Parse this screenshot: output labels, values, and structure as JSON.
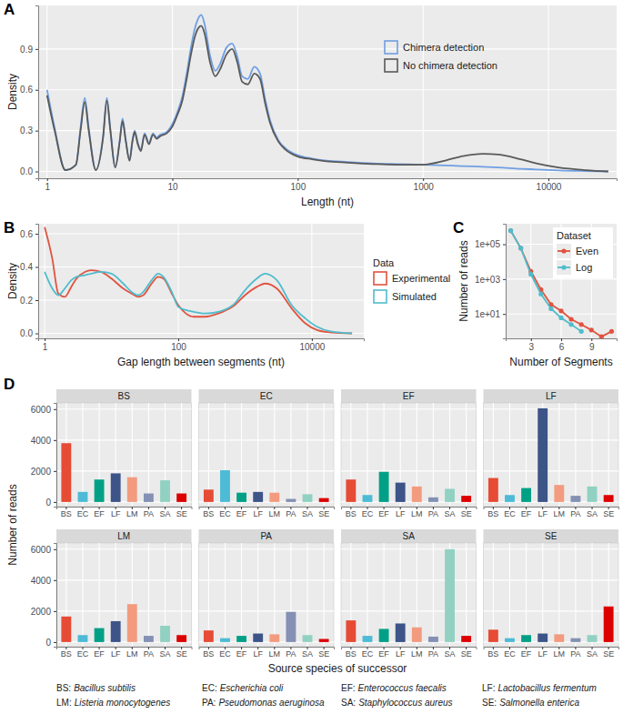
{
  "chart_data": [
    {
      "type": "line",
      "title": "A",
      "x_label": "Length (nt)",
      "y_label": "Density",
      "log": "x",
      "grid": true,
      "legend": "top-right",
      "x": [
        1,
        1.15,
        1.4,
        1.7,
        1.85,
        2,
        2.15,
        2.45,
        2.8,
        3,
        3.2,
        3.5,
        3.8,
        4,
        4.25,
        4.55,
        4.8,
        5,
        5.3,
        5.6,
        6,
        6.5,
        7,
        7.5,
        8,
        9,
        10,
        11,
        12,
        13,
        14,
        15,
        16,
        17,
        18,
        20,
        22,
        24,
        27,
        30,
        33,
        36,
        40,
        45,
        50,
        55,
        60,
        70,
        80,
        100,
        130,
        170,
        250,
        400,
        600,
        1000,
        1500,
        2000,
        3000,
        4000,
        6000,
        8000,
        12000,
        20000,
        30000
      ],
      "series": [
        {
          "name": "Chimera detection",
          "color": "#6f9fe3",
          "values": [
            0.6,
            0.32,
            0.01,
            0.05,
            0.32,
            0.54,
            0.32,
            0.01,
            0.26,
            0.54,
            0.31,
            0.03,
            0.23,
            0.39,
            0.23,
            0.08,
            0.23,
            0.3,
            0.21,
            0.16,
            0.28,
            0.21,
            0.28,
            0.25,
            0.27,
            0.29,
            0.35,
            0.44,
            0.55,
            0.72,
            0.9,
            1.04,
            1.12,
            1.15,
            1.09,
            0.85,
            0.74,
            0.79,
            0.91,
            0.94,
            0.84,
            0.7,
            0.68,
            0.77,
            0.72,
            0.53,
            0.38,
            0.23,
            0.17,
            0.12,
            0.095,
            0.08,
            0.07,
            0.06,
            0.055,
            0.05,
            0.045,
            0.04,
            0.035,
            0.03,
            0.02,
            0.015,
            0.008,
            0.003,
            0
          ]
        },
        {
          "name": "No chimera detection",
          "color": "#595959",
          "values": [
            0.56,
            0.3,
            0.01,
            0.05,
            0.3,
            0.51,
            0.3,
            0.01,
            0.25,
            0.52,
            0.3,
            0.03,
            0.22,
            0.37,
            0.22,
            0.08,
            0.22,
            0.29,
            0.2,
            0.15,
            0.27,
            0.2,
            0.27,
            0.24,
            0.26,
            0.28,
            0.33,
            0.42,
            0.52,
            0.68,
            0.85,
            0.98,
            1.05,
            1.07,
            1.02,
            0.8,
            0.7,
            0.75,
            0.86,
            0.9,
            0.8,
            0.66,
            0.64,
            0.72,
            0.68,
            0.5,
            0.36,
            0.22,
            0.16,
            0.11,
            0.09,
            0.075,
            0.065,
            0.055,
            0.05,
            0.05,
            0.08,
            0.11,
            0.13,
            0.125,
            0.09,
            0.06,
            0.03,
            0.01,
            0
          ]
        }
      ],
      "xlim": [
        0.85,
        35000
      ],
      "xticks": [
        1,
        10,
        100,
        1000,
        10000
      ],
      "ylim": [
        -0.05,
        1.22
      ],
      "yticks": [
        {
          "value": 0,
          "label": "0.0"
        },
        {
          "value": 0.3,
          "label": "0.3"
        },
        {
          "value": 0.6,
          "label": "0.6"
        },
        {
          "value": 0.9,
          "label": "0.9"
        }
      ]
    },
    {
      "type": "line",
      "title": "B",
      "x_label": "Gap length between segments (nt)",
      "y_label": "Density",
      "log": "x",
      "grid": true,
      "legend": "right",
      "legend_title": "Data",
      "x": [
        1,
        1.3,
        1.6,
        2,
        2.5,
        3,
        4,
        5,
        7,
        10,
        15,
        20,
        25,
        30,
        40,
        50,
        60,
        80,
        100,
        130,
        170,
        250,
        400,
        700,
        1000,
        1500,
        2000,
        3000,
        5000,
        8000,
        12000,
        20000,
        40000
      ],
      "series": [
        {
          "name": "Experimental",
          "color": "#e0533f",
          "values": [
            0.64,
            0.45,
            0.24,
            0.22,
            0.28,
            0.33,
            0.37,
            0.38,
            0.37,
            0.33,
            0.27,
            0.24,
            0.22,
            0.23,
            0.3,
            0.34,
            0.33,
            0.24,
            0.17,
            0.12,
            0.1,
            0.1,
            0.12,
            0.17,
            0.23,
            0.28,
            0.3,
            0.27,
            0.15,
            0.06,
            0.02,
            0.005,
            0
          ]
        },
        {
          "name": "Simulated",
          "color": "#4fbccc",
          "values": [
            0.37,
            0.27,
            0.23,
            0.27,
            0.32,
            0.34,
            0.35,
            0.36,
            0.37,
            0.36,
            0.3,
            0.25,
            0.23,
            0.25,
            0.32,
            0.36,
            0.34,
            0.25,
            0.16,
            0.14,
            0.13,
            0.12,
            0.13,
            0.18,
            0.26,
            0.33,
            0.36,
            0.32,
            0.17,
            0.09,
            0.04,
            0.01,
            0
          ]
        }
      ],
      "xlim": [
        0.8,
        60000
      ],
      "xticks": [
        1,
        100,
        10000
      ],
      "ylim": [
        -0.03,
        0.66
      ],
      "yticks": [
        {
          "value": 0,
          "label": "0.0"
        },
        {
          "value": 0.2,
          "label": "0.2"
        },
        {
          "value": 0.4,
          "label": "0.4"
        },
        {
          "value": 0.6,
          "label": "0.6"
        }
      ]
    },
    {
      "type": "line",
      "title": "C",
      "x_label": "Number of Segments",
      "y_label": "Number of reads",
      "log": "y",
      "grid": true,
      "legend": "top-right",
      "legend_title": "Dataset",
      "marker": "circle",
      "series": [
        {
          "name": "Even",
          "color": "#e0533f",
          "x": [
            1,
            2,
            3,
            4,
            5,
            6,
            7,
            8,
            9,
            10,
            11
          ],
          "values": [
            600000,
            60000,
            2800,
            250,
            35,
            15,
            5,
            2.5,
            1.2,
            0.5,
            1
          ]
        },
        {
          "name": "Log",
          "color": "#4fbccc",
          "x": [
            1,
            2,
            3,
            4,
            5,
            6,
            7,
            8
          ],
          "values": [
            600000,
            60000,
            1900,
            140,
            20,
            6,
            2.5,
            1
          ]
        }
      ],
      "xlim": [
        0.5,
        11.5
      ],
      "xticks": [
        3,
        6,
        9
      ],
      "ylim": [
        0.4,
        1500000
      ],
      "yticks": [
        {
          "value": 10,
          "label": "1e+01"
        },
        {
          "value": 1000,
          "label": "1e+03"
        },
        {
          "value": 100000,
          "label": "1e+05"
        }
      ]
    },
    {
      "type": "bar",
      "title": "D",
      "x_label": "Source species of successor",
      "y_label": "Number of reads",
      "grid": true,
      "categories": [
        "BS",
        "EC",
        "EF",
        "LF",
        "LM",
        "PA",
        "SA",
        "SE"
      ],
      "colors": [
        "#E64B35",
        "#4DBBD5",
        "#00A087",
        "#3C5488",
        "#F39B7F",
        "#8491B4",
        "#91D1C2",
        "#DC0000"
      ],
      "ylim": [
        -300,
        6400
      ],
      "yticks": [
        0,
        2000,
        4000,
        6000
      ],
      "facets": [
        {
          "title": "BS",
          "values": [
            3800,
            650,
            1450,
            1850,
            1600,
            550,
            1400,
            550
          ]
        },
        {
          "title": "EC",
          "values": [
            800,
            2050,
            600,
            650,
            600,
            200,
            500,
            250
          ]
        },
        {
          "title": "EF",
          "values": [
            1450,
            450,
            1950,
            1250,
            1000,
            300,
            850,
            400
          ]
        },
        {
          "title": "LF",
          "values": [
            1550,
            450,
            900,
            6050,
            1100,
            400,
            1000,
            450
          ]
        },
        {
          "title": "LM",
          "values": [
            1650,
            450,
            900,
            1350,
            2450,
            400,
            1050,
            450
          ]
        },
        {
          "title": "PA",
          "values": [
            750,
            250,
            400,
            550,
            500,
            1950,
            450,
            200
          ]
        },
        {
          "title": "SA",
          "values": [
            1400,
            400,
            850,
            1200,
            950,
            350,
            6000,
            400
          ]
        },
        {
          "title": "SE",
          "values": [
            800,
            250,
            450,
            550,
            500,
            250,
            450,
            2300
          ]
        }
      ],
      "annotations": [
        {
          "label": "BS:",
          "text": "Bacillus subtilis"
        },
        {
          "label": "EC:",
          "text": "Escherichia coli"
        },
        {
          "label": "EF:",
          "text": "Enterococcus faecalis"
        },
        {
          "label": "LF:",
          "text": "Lactobacillus fermentum"
        },
        {
          "label": "LM:",
          "text": "Listeria monocytogenes"
        },
        {
          "label": "PA:",
          "text": "Pseudomonas aeruginosa"
        },
        {
          "label": "SA:",
          "text": "Staphylococcus aureus"
        },
        {
          "label": "SE:",
          "text": "Salmonella enterica"
        }
      ]
    }
  ]
}
